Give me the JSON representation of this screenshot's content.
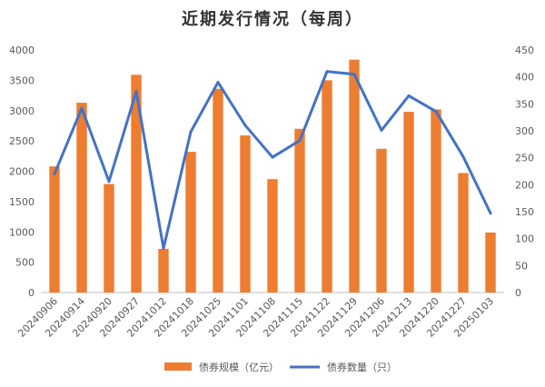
{
  "chart_data": {
    "type": "bar+line",
    "title": "近期发行情况（每周）",
    "categories": [
      "20240906",
      "20240914",
      "20240920",
      "20240927",
      "20241012",
      "20241018",
      "20241025",
      "20241101",
      "20241108",
      "20241115",
      "20241122",
      "20241129",
      "20241206",
      "20241213",
      "20241220",
      "20241227",
      "20250103"
    ],
    "series": [
      {
        "name": "债券规模（亿元）",
        "type": "bar",
        "axis": "left",
        "color": "#ED7D31",
        "values": [
          2080,
          3130,
          1790,
          3590,
          720,
          2320,
          3360,
          2590,
          1870,
          2700,
          3500,
          3840,
          2370,
          2980,
          3020,
          1970,
          990
        ]
      },
      {
        "name": "债券数量（只）",
        "type": "line",
        "axis": "right",
        "color": "#4472C4",
        "values": [
          220,
          342,
          206,
          373,
          82,
          298,
          390,
          310,
          251,
          282,
          410,
          405,
          301,
          365,
          336,
          252,
          147
        ]
      }
    ],
    "y_left": {
      "min": 0,
      "max": 4000,
      "step": 500,
      "ticks": [
        "0",
        "500",
        "1000",
        "1500",
        "2000",
        "2500",
        "3000",
        "3500",
        "4000"
      ]
    },
    "y_right": {
      "min": 0,
      "max": 450,
      "step": 50,
      "ticks": [
        "0",
        "50",
        "100",
        "150",
        "200",
        "250",
        "300",
        "350",
        "400",
        "450"
      ]
    },
    "grid": false,
    "legend_position": "bottom"
  }
}
